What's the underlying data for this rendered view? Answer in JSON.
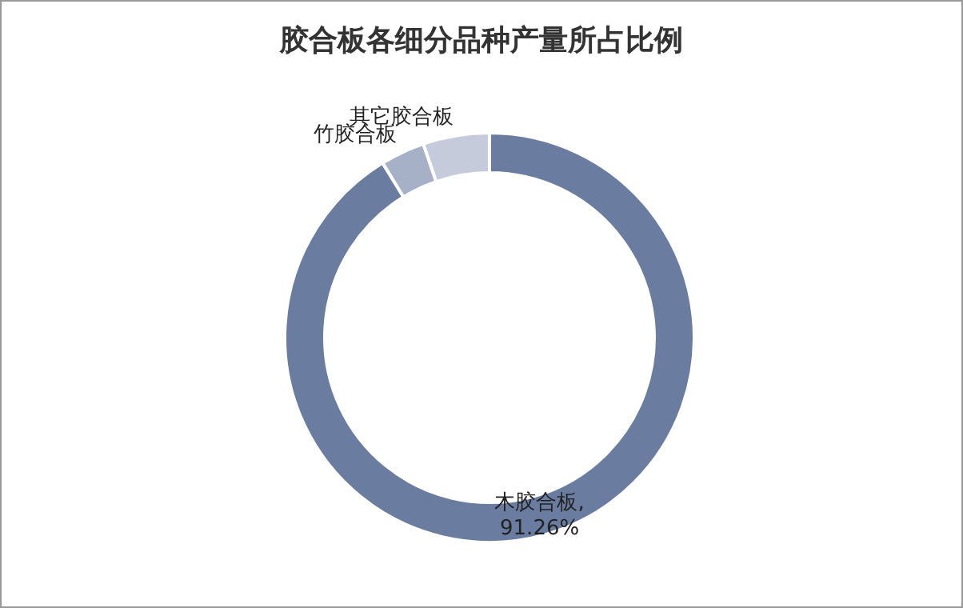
{
  "chart_data": {
    "type": "donut",
    "title": "胶合板各细分品种产量所占比例",
    "categories": [
      "木胶合板",
      "竹胶合板",
      "其它胶合板"
    ],
    "values": [
      91.26,
      3.5,
      5.24
    ],
    "colors": [
      "#6a7ca0",
      "#a6b1c7",
      "#c5cbdb"
    ],
    "value_labels": [
      ", 91.26%",
      null,
      null
    ],
    "legend": false
  }
}
